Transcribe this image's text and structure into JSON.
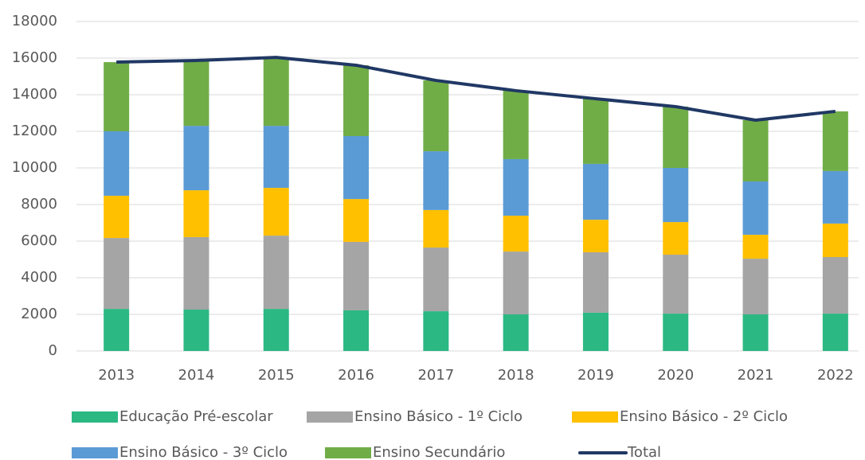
{
  "chart_data": {
    "type": "bar",
    "stacked": true,
    "categories": [
      "2013",
      "2014",
      "2015",
      "2016",
      "2017",
      "2018",
      "2019",
      "2020",
      "2021",
      "2022"
    ],
    "series": [
      {
        "name": "Educação Pré-escolar",
        "color": "#2bb883",
        "values": [
          2300,
          2260,
          2300,
          2220,
          2170,
          2000,
          2090,
          2040,
          2000,
          2040
        ]
      },
      {
        "name": "Ensino Básico - 1º Ciclo",
        "color": "#a5a5a5",
        "values": [
          3870,
          3960,
          4000,
          3740,
          3480,
          3430,
          3300,
          3220,
          3040,
          3090
        ]
      },
      {
        "name": "Ensino Básico - 2º Ciclo",
        "color": "#ffc000",
        "values": [
          2310,
          2560,
          2610,
          2340,
          2050,
          1960,
          1780,
          1780,
          1310,
          1830
        ]
      },
      {
        "name": "Ensino Básico - 3º Ciclo",
        "color": "#5b9bd5",
        "values": [
          3520,
          3520,
          3390,
          3440,
          3210,
          3090,
          3050,
          2960,
          2910,
          2870
        ]
      },
      {
        "name": "Ensino Secundário",
        "color": "#70ad47",
        "values": [
          3780,
          3570,
          3740,
          3870,
          3870,
          3740,
          3560,
          3350,
          3350,
          3260
        ]
      },
      {
        "name": "Total",
        "color": "#203864",
        "type": "line",
        "values": [
          15780,
          15870,
          16040,
          15610,
          14780,
          14220,
          13780,
          13350,
          12610,
          13090
        ]
      }
    ],
    "ylim": [
      0,
      18000
    ],
    "yticks": [
      0,
      2000,
      4000,
      6000,
      8000,
      10000,
      12000,
      14000,
      16000,
      18000
    ],
    "grid": true,
    "legend": "bottom"
  }
}
